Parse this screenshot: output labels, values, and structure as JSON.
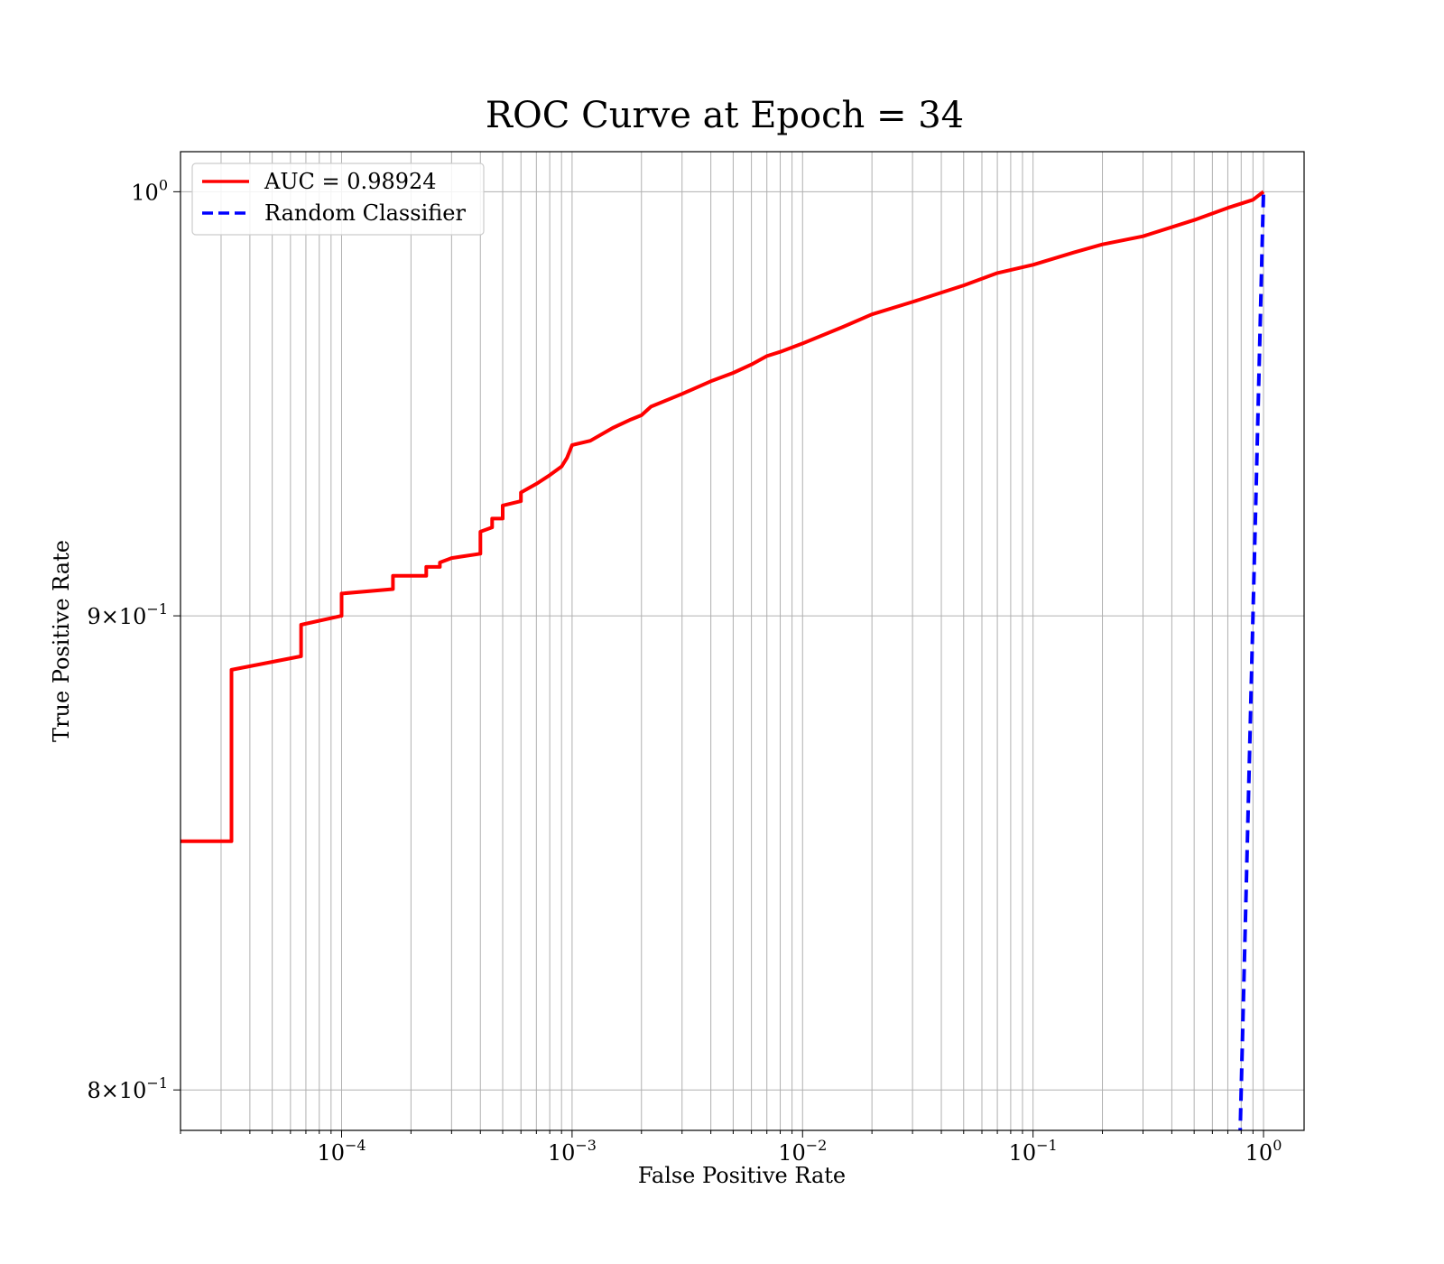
{
  "chart_data": {
    "type": "line",
    "title": "ROC Curve at Epoch = 34",
    "xlabel": "False Positive Rate",
    "ylabel": "True Positive Rate",
    "xscale": "log",
    "yscale": "log",
    "xlim": [
      2e-05,
      1.5
    ],
    "ylim": [
      0.792,
      1.01
    ],
    "grid": "on (major and minor)",
    "legend_position": "upper-left",
    "x_ticks": [
      {
        "value": 0.0001,
        "base": "10",
        "exp": "−4"
      },
      {
        "value": 0.001,
        "base": "10",
        "exp": "−3"
      },
      {
        "value": 0.01,
        "base": "10",
        "exp": "−2"
      },
      {
        "value": 0.1,
        "base": "10",
        "exp": "−1"
      },
      {
        "value": 1,
        "base": "10",
        "exp": "0"
      }
    ],
    "y_ticks": [
      {
        "value": 1.0,
        "base": "10",
        "exp": "0"
      },
      {
        "value": 0.9,
        "base": "9×10",
        "exp": "−1"
      },
      {
        "value": 0.8,
        "base": "8×10",
        "exp": "−1"
      }
    ],
    "series": [
      {
        "name": "AUC = 0.98924",
        "color": "#ff0000",
        "style": "solid",
        "x": [
          2e-05,
          3.33e-05,
          3.33e-05,
          6.67e-05,
          6.67e-05,
          0.0001,
          0.0001,
          0.000167,
          0.000167,
          0.000233,
          0.000233,
          0.000267,
          0.000267,
          0.0003,
          0.0004,
          0.0004,
          0.00045,
          0.00045,
          0.0005,
          0.0005,
          0.0006,
          0.0006,
          0.0007,
          0.0008,
          0.0009,
          0.00095,
          0.001,
          0.0012,
          0.0015,
          0.0018,
          0.002,
          0.0022,
          0.003,
          0.004,
          0.005,
          0.006,
          0.007,
          0.008,
          0.01,
          0.015,
          0.02,
          0.03,
          0.05,
          0.07,
          0.1,
          0.15,
          0.2,
          0.3,
          0.5,
          0.7,
          0.9,
          1.0
        ],
        "y": [
          0.851,
          0.851,
          0.888,
          0.891,
          0.898,
          0.9,
          0.905,
          0.906,
          0.909,
          0.909,
          0.911,
          0.911,
          0.912,
          0.913,
          0.914,
          0.919,
          0.92,
          0.922,
          0.922,
          0.925,
          0.926,
          0.928,
          0.93,
          0.932,
          0.934,
          0.936,
          0.939,
          0.94,
          0.943,
          0.945,
          0.946,
          0.948,
          0.951,
          0.954,
          0.956,
          0.958,
          0.96,
          0.961,
          0.963,
          0.967,
          0.97,
          0.973,
          0.977,
          0.98,
          0.982,
          0.985,
          0.987,
          0.989,
          0.993,
          0.996,
          0.998,
          1.0
        ]
      },
      {
        "name": "Random Classifier",
        "color": "#0000ff",
        "style": "dashed",
        "x": [
          0.79,
          1.0
        ],
        "y": [
          0.79,
          1.0
        ]
      }
    ]
  }
}
